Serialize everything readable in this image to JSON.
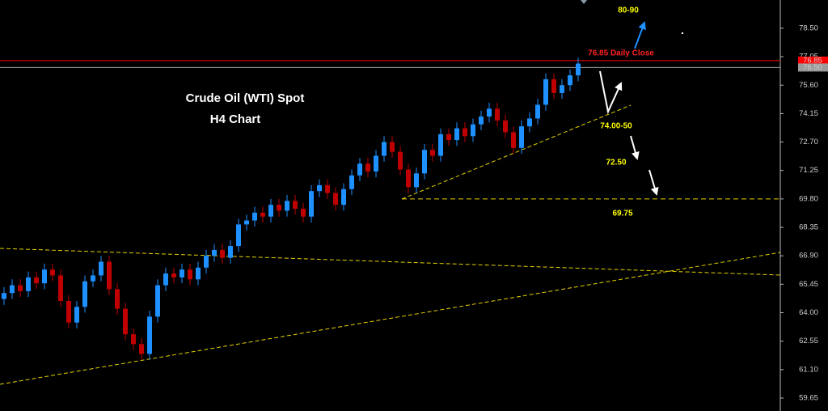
{
  "chart_data": {
    "type": "candlestick",
    "title": "Crude Oil (WTI) Spot",
    "subtitle": "H4 Chart",
    "up_color": "#1e90ff",
    "down_color": "#c00000",
    "ylim": [
      58.99,
      79.94
    ],
    "yticks": [
      {
        "value": 78.5,
        "label": "78.50"
      },
      {
        "value": 77.05,
        "label": "77.05"
      },
      {
        "value": 75.6,
        "label": "75.60"
      },
      {
        "value": 74.15,
        "label": "74.15"
      },
      {
        "value": 72.7,
        "label": "72.70"
      },
      {
        "value": 71.25,
        "label": "71.25"
      },
      {
        "value": 69.8,
        "label": "69.80"
      },
      {
        "value": 68.35,
        "label": "68.35"
      },
      {
        "value": 66.9,
        "label": "66.90"
      },
      {
        "value": 65.45,
        "label": "65.45"
      },
      {
        "value": 64,
        "label": "64.00"
      },
      {
        "value": 62.55,
        "label": "62.55"
      },
      {
        "value": 61.1,
        "label": "61.10"
      },
      {
        "value": 59.65,
        "label": "59.65"
      }
    ],
    "levels": [
      {
        "value": 76.85,
        "label": "76.85",
        "color": "#ff0000"
      },
      {
        "value": 76.5,
        "label": "76.50",
        "color": "#9a9a9a"
      }
    ],
    "support_level": {
      "value": 69.8,
      "color": "#e6d200"
    },
    "annotations": [
      "80-90",
      "76.85 Daily Close",
      "74.00-50",
      "72.50",
      "69.75"
    ],
    "open": [
      64.7,
      65.0,
      65.4,
      65.1,
      65.8,
      65.5,
      66.2,
      65.9,
      64.6,
      63.5,
      64.3,
      65.6,
      65.9,
      66.6,
      65.2,
      64.2,
      62.9,
      62.4,
      61.9,
      63.8,
      65.4,
      66.0,
      65.8,
      66.2,
      65.7,
      66.3,
      66.9,
      67.2,
      66.8,
      67.4,
      68.5,
      68.7,
      69.1,
      68.9,
      69.5,
      69.2,
      69.7,
      69.3,
      68.9,
      70.2,
      70.5,
      70.1,
      69.5,
      70.3,
      71.0,
      71.6,
      71.2,
      72.0,
      72.7,
      72.2,
      71.3,
      70.4,
      71.1,
      72.3,
      72.0,
      73.1,
      72.8,
      73.4,
      73.0,
      73.6,
      74.0,
      74.4,
      73.8,
      73.2,
      72.4,
      73.5,
      73.9,
      74.6,
      75.9,
      75.2,
      75.6,
      76.1
    ],
    "high": [
      65.3,
      65.7,
      65.7,
      66.1,
      66.1,
      66.5,
      66.5,
      66.2,
      64.9,
      64.6,
      65.9,
      66.2,
      66.9,
      66.9,
      65.5,
      64.5,
      63.2,
      62.7,
      64.1,
      65.7,
      66.3,
      66.3,
      66.5,
      66.5,
      66.6,
      67.2,
      67.5,
      67.5,
      67.7,
      68.8,
      69.0,
      69.4,
      69.4,
      69.8,
      69.8,
      70.0,
      70.0,
      69.6,
      70.5,
      70.8,
      70.8,
      70.4,
      70.6,
      71.3,
      71.9,
      71.9,
      72.3,
      73.0,
      73.0,
      72.5,
      71.6,
      71.4,
      72.6,
      72.6,
      73.4,
      73.4,
      73.7,
      73.7,
      73.9,
      74.3,
      74.7,
      74.7,
      74.1,
      73.5,
      73.8,
      74.2,
      74.9,
      76.2,
      76.2,
      75.9,
      76.4,
      77.0
    ],
    "low": [
      64.4,
      64.7,
      64.8,
      64.8,
      65.2,
      65.2,
      65.6,
      64.3,
      63.2,
      63.2,
      64.0,
      65.3,
      65.6,
      64.9,
      63.9,
      62.6,
      62.1,
      61.6,
      61.6,
      63.5,
      65.1,
      65.5,
      65.5,
      65.4,
      65.4,
      66.0,
      66.6,
      66.5,
      66.5,
      67.1,
      68.2,
      68.4,
      68.6,
      68.6,
      68.9,
      68.9,
      69.0,
      68.6,
      68.6,
      69.9,
      69.8,
      69.2,
      69.2,
      70.0,
      70.7,
      70.9,
      70.9,
      71.7,
      71.9,
      71.0,
      70.1,
      70.1,
      70.8,
      71.7,
      71.7,
      72.5,
      72.5,
      72.7,
      72.7,
      73.3,
      73.7,
      73.5,
      72.9,
      72.1,
      72.1,
      73.2,
      73.6,
      74.3,
      74.9,
      74.9,
      75.3,
      75.8
    ],
    "close": [
      65.0,
      65.4,
      65.1,
      65.8,
      65.5,
      66.2,
      65.9,
      64.6,
      63.5,
      64.3,
      65.6,
      65.9,
      66.6,
      65.2,
      64.2,
      62.9,
      62.4,
      61.9,
      63.8,
      65.4,
      66.0,
      65.8,
      66.2,
      65.7,
      66.3,
      66.9,
      67.2,
      66.8,
      67.4,
      68.5,
      68.7,
      69.1,
      68.9,
      69.5,
      69.2,
      69.7,
      69.3,
      68.9,
      70.2,
      70.5,
      70.1,
      69.5,
      70.3,
      71.0,
      71.6,
      71.2,
      72.0,
      72.7,
      72.2,
      71.3,
      70.4,
      71.1,
      72.3,
      72.0,
      73.1,
      72.8,
      73.4,
      73.0,
      73.6,
      74.0,
      74.4,
      73.8,
      73.2,
      72.4,
      73.5,
      73.9,
      74.6,
      75.9,
      75.2,
      75.6,
      76.1,
      76.7
    ]
  }
}
